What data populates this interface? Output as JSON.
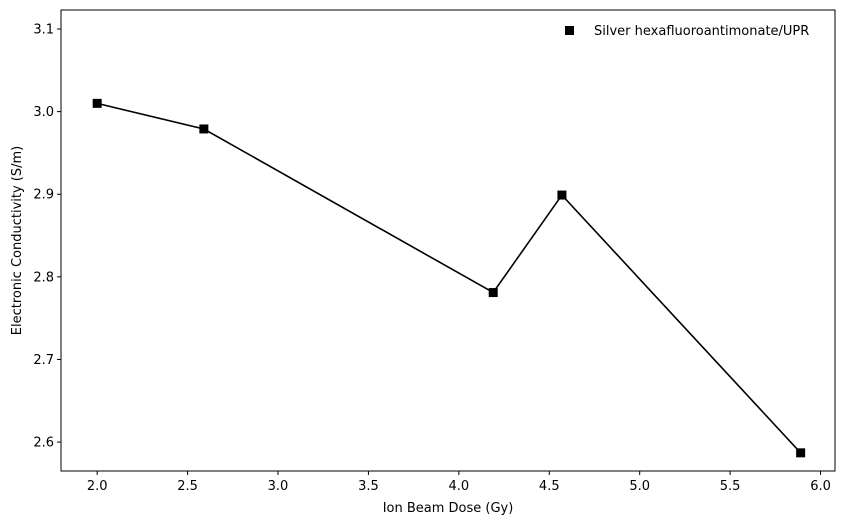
{
  "chart_data": {
    "type": "line",
    "title": "",
    "xlabel": "Ion Beam Dose (Gy)",
    "ylabel": "Electronic Conductivity (S/m)",
    "xlim": [
      1.8,
      6.08
    ],
    "ylim": [
      2.565,
      3.123
    ],
    "xticks": [
      2.0,
      2.5,
      3.0,
      3.5,
      4.0,
      4.5,
      5.0,
      5.5,
      6.0
    ],
    "xtick_labels": [
      "2.0",
      "2.5",
      "3.0",
      "3.5",
      "4.0",
      "4.5",
      "5.0",
      "5.5",
      "6.0"
    ],
    "yticks": [
      2.6,
      2.7,
      2.8,
      2.9,
      3.0,
      3.1
    ],
    "ytick_labels": [
      "2.6",
      "2.7",
      "2.8",
      "2.9",
      "3.0",
      "3.1"
    ],
    "grid": false,
    "legend_position": "top-right",
    "series": [
      {
        "name": "Silver hexafluoroantimonate/UPR",
        "marker": "square",
        "color": "#000000",
        "x": [
          2.0,
          2.59,
          4.19,
          4.57,
          5.89
        ],
        "y": [
          3.01,
          2.979,
          2.781,
          2.899,
          2.587
        ]
      }
    ]
  }
}
